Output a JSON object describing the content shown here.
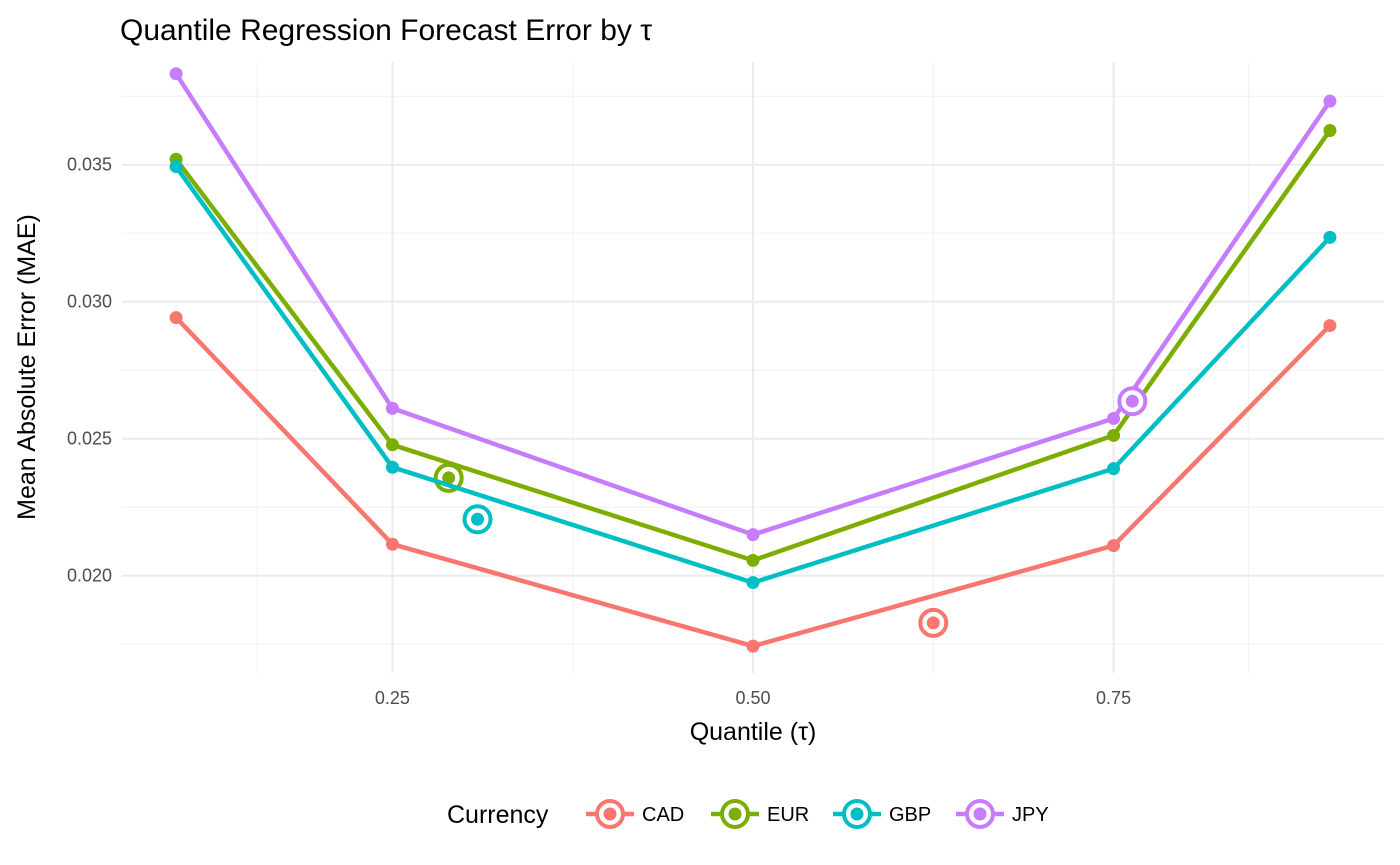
{
  "chart_data": {
    "type": "line",
    "title": "Quantile Regression Forecast Error by τ",
    "xlabel": "Quantile (τ)",
    "ylabel": "Mean Absolute Error (MAE)",
    "x": [
      0.1,
      0.25,
      0.5,
      0.75,
      0.9
    ],
    "xlim": [
      0.0625,
      0.9375
    ],
    "ylim": [
      0.01645,
      0.03875
    ],
    "x_ticks": [
      0.25,
      0.5,
      0.75
    ],
    "x_tick_labels": [
      "0.25",
      "0.50",
      "0.75"
    ],
    "y_ticks": [
      0.02,
      0.025,
      0.03,
      0.035
    ],
    "y_tick_labels": [
      "0.020",
      "0.025",
      "0.030",
      "0.035"
    ],
    "grid": true,
    "legend": {
      "title": "Currency",
      "position": "bottom"
    },
    "series": [
      {
        "name": "CAD",
        "color": "#F8766D",
        "values": [
          0.02942,
          0.02115,
          0.01743,
          0.0211,
          0.02913
        ],
        "highlight": {
          "x": 0.625,
          "y": 0.01828
        }
      },
      {
        "name": "EUR",
        "color": "#7CAE00",
        "values": [
          0.0352,
          0.02478,
          0.02056,
          0.02512,
          0.03625
        ],
        "highlight": {
          "x": 0.289,
          "y": 0.02357
        }
      },
      {
        "name": "GBP",
        "color": "#00BFC4",
        "values": [
          0.03493,
          0.02396,
          0.01975,
          0.02391,
          0.03235
        ],
        "highlight": {
          "x": 0.309,
          "y": 0.02206
        }
      },
      {
        "name": "JPY",
        "color": "#C77CFF",
        "values": [
          0.03832,
          0.02611,
          0.0215,
          0.02574,
          0.03732
        ],
        "highlight": {
          "x": 0.763,
          "y": 0.02637
        }
      }
    ]
  }
}
